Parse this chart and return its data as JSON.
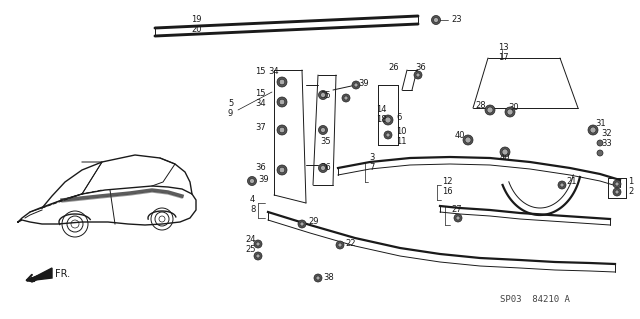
{
  "bg_color": "#ffffff",
  "line_color": "#1a1a1a",
  "text_color": "#1a1a1a",
  "fig_width": 6.4,
  "fig_height": 3.19,
  "dpi": 100,
  "watermark": "SP03  84210 A"
}
